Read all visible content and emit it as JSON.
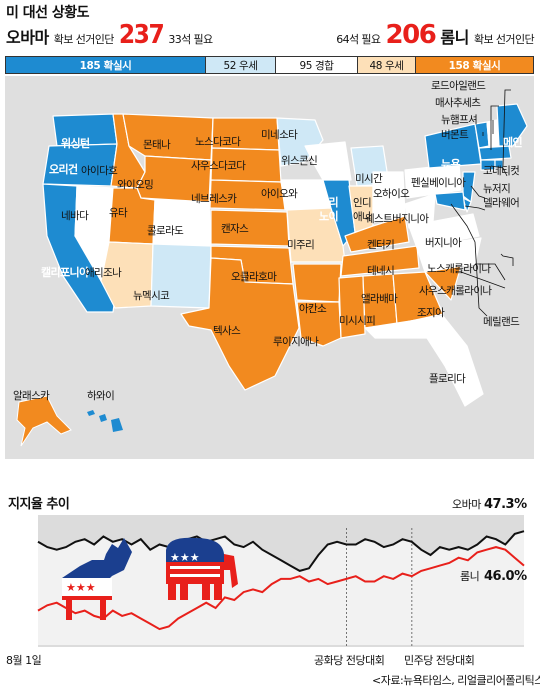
{
  "header": {
    "title": "미 대선 상황도",
    "obama": {
      "name": "오바마",
      "secured_label": "확보 선거인단",
      "electors": "237",
      "needed": "33석 필요"
    },
    "romney": {
      "needed": "64석 필요",
      "electors": "206",
      "name": "롬니",
      "secured_label": "확보 선거인단"
    }
  },
  "segments": [
    {
      "label": "185 확실시",
      "key": "obama-sure"
    },
    {
      "label": "52 우세",
      "key": "obama-lean"
    },
    {
      "label": "95 경합",
      "key": "tossup"
    },
    {
      "label": "48 우세",
      "key": "romney-lean"
    },
    {
      "label": "158 확실시",
      "key": "romney-sure"
    }
  ],
  "colors": {
    "obama_sure": "#1e8bd1",
    "obama_lean": "#cfe8f6",
    "tossup": "#ffffff",
    "romney_lean": "#fde0b8",
    "romney_sure": "#f28a1f",
    "obama_line": "#111111",
    "romney_line": "#e8201b",
    "map_bg": "#dfdfdf"
  },
  "map": {
    "states": {
      "washington": "워싱턴",
      "oregon": "오리건",
      "california": "캘리포니아",
      "nevada": "네바다",
      "idaho": "아이다호",
      "montana": "몬태나",
      "wyoming": "와이오밍",
      "utah": "유타",
      "arizona": "애리조나",
      "colorado": "콜로라도",
      "new_mexico": "뉴멕시코",
      "north_dakota": "노스다코다",
      "south_dakota": "사우스다코다",
      "nebraska": "네브레스카",
      "kansas": "캔자스",
      "oklahoma": "오클라호마",
      "texas": "텍사스",
      "minnesota": "미네소타",
      "iowa": "아이오와",
      "missouri": "미주리",
      "arkansas": "아칸소",
      "louisiana": "루이지애나",
      "wisconsin": "위스콘신",
      "illinois_1": "일리",
      "illinois_2": "노이",
      "michigan": "미시간",
      "indiana_1": "인디",
      "indiana_2": "애나",
      "ohio": "오하이오",
      "kentucky": "켄터키",
      "tennessee": "테네시",
      "mississippi": "미시시피",
      "alabama": "앨라배마",
      "georgia": "조지아",
      "florida": "플로리다",
      "south_carolina": "사우스캐롤라이나",
      "north_carolina": "노스캐롤라이나",
      "virginia": "버지니아",
      "west_virginia": "웨스트버지니아",
      "pennsylvania": "펜실베이니아",
      "new_york": "뉴욕",
      "maine": "메인",
      "vermont": "버몬트",
      "new_hampshire": "뉴햄프셔",
      "massachusetts": "매사추세츠",
      "rhode_island": "로드아일랜드",
      "connecticut": "코네티컷",
      "new_jersey": "뉴저지",
      "delaware": "델라웨어",
      "maryland": "메릴랜드",
      "alaska": "알래스카",
      "hawaii": "하와이"
    }
  },
  "chart": {
    "title": "지지율 추이",
    "start_label": "8월 1일",
    "events": [
      "공화당 전당대회",
      "민주당 전당대회"
    ],
    "source": "<자료:뉴욕타임스, 리얼클리어폴리틱스>"
  },
  "chart_data": {
    "type": "line",
    "title": "지지율 추이",
    "x_start_label": "8월 1일",
    "series": [
      {
        "name": "오바마",
        "final_label": "47.3%",
        "color": "#111111",
        "values": [
          46.9,
          46.7,
          46.6,
          46.7,
          46.9,
          47.0,
          46.8,
          47.1,
          46.9,
          47.0,
          46.8,
          47.0,
          46.6,
          46.8,
          46.7,
          46.9,
          47.0,
          47.1,
          46.9,
          47.0,
          47.1,
          46.8,
          46.7,
          46.9,
          46.6,
          46.4,
          46.2,
          46.0,
          45.8,
          45.9,
          46.4,
          46.8,
          46.9,
          46.8,
          46.8,
          47.0,
          46.9,
          46.7,
          46.8,
          47.0,
          46.9,
          46.6,
          46.4,
          46.7,
          46.6,
          46.7,
          46.6,
          46.8,
          47.1,
          47.0,
          46.8,
          47.2,
          47.3
        ]
      },
      {
        "name": "롬니",
        "final_label": "46.0%",
        "color": "#e8201b",
        "values": [
          44.3,
          44.5,
          44.6,
          44.4,
          44.2,
          44.3,
          44.1,
          44.0,
          44.3,
          44.1,
          44.2,
          44.0,
          43.8,
          43.6,
          43.7,
          44.0,
          44.2,
          44.4,
          44.6,
          44.4,
          44.8,
          44.7,
          45.0,
          45.1,
          45.0,
          45.3,
          45.5,
          45.5,
          45.6,
          45.4,
          45.5,
          45.3,
          45.4,
          45.5,
          45.6,
          45.4,
          45.4,
          45.6,
          45.5,
          45.7,
          45.6,
          45.8,
          45.9,
          46.0,
          46.1,
          46.3,
          46.2,
          46.5,
          46.6,
          46.7,
          46.6,
          46.3,
          46.0
        ]
      }
    ],
    "ylim": [
      43.0,
      47.8
    ],
    "grid": false,
    "annotations": [
      {
        "text": "공화당 전당대회",
        "x_index": 33
      },
      {
        "text": "민주당 전당대회",
        "x_index": 40
      }
    ]
  }
}
